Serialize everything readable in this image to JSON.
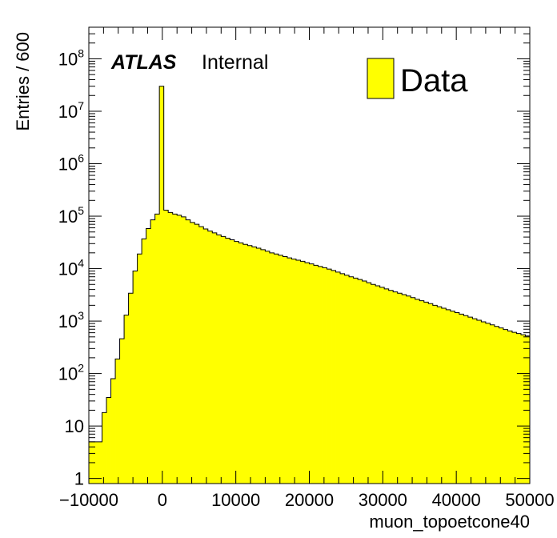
{
  "chart_data": {
    "type": "bar",
    "subtype": "histogram",
    "xlabel": "muon_topoetcone40",
    "ylabel": "Entries / 600",
    "xlim": [
      -10000,
      50000
    ],
    "ylim": [
      0.8,
      400000000
    ],
    "log_y": true,
    "bin_width": 600,
    "x_tick_labels": [
      "−10000",
      "0",
      "10000",
      "20000",
      "30000",
      "40000",
      "50000"
    ],
    "y_tick_labels": [
      "1",
      "10",
      "10^2",
      "10^3",
      "10^4",
      "10^5",
      "10^6",
      "10^7",
      "10^8"
    ],
    "atlas_label": "ATLAS",
    "atlas_status": "Internal",
    "legend": {
      "entries": [
        "Data"
      ],
      "placement": "top-right"
    },
    "fill_color": "#ffff00",
    "line_color": "#000000",
    "series": [
      {
        "name": "Data",
        "x_start": -10000,
        "values": [
          5,
          5,
          5,
          18,
          35,
          80,
          190,
          460,
          1300,
          3400,
          9000,
          19000,
          37000,
          58000,
          85000,
          110000,
          30000000,
          130000,
          118000,
          110000,
          104000,
          97000,
          85000,
          76000,
          70000,
          63000,
          57000,
          52000,
          48000,
          44000,
          41000,
          38000,
          35500,
          33000,
          31000,
          29000,
          27500,
          26000,
          24500,
          23000,
          21500,
          20000,
          19000,
          18000,
          17000,
          16000,
          15200,
          14500,
          13800,
          13000,
          12300,
          11600,
          11000,
          10400,
          9800,
          9200,
          8600,
          8000,
          7500,
          7000,
          6600,
          6200,
          5800,
          5400,
          5000,
          4700,
          4400,
          4100,
          3850,
          3600,
          3400,
          3200,
          3000,
          2800,
          2600,
          2450,
          2300,
          2150,
          2000,
          1880,
          1760,
          1650,
          1550,
          1450,
          1360,
          1270,
          1190,
          1110,
          1040,
          970,
          910,
          850,
          790,
          740,
          690,
          650,
          610,
          580,
          550,
          520
        ]
      }
    ]
  }
}
